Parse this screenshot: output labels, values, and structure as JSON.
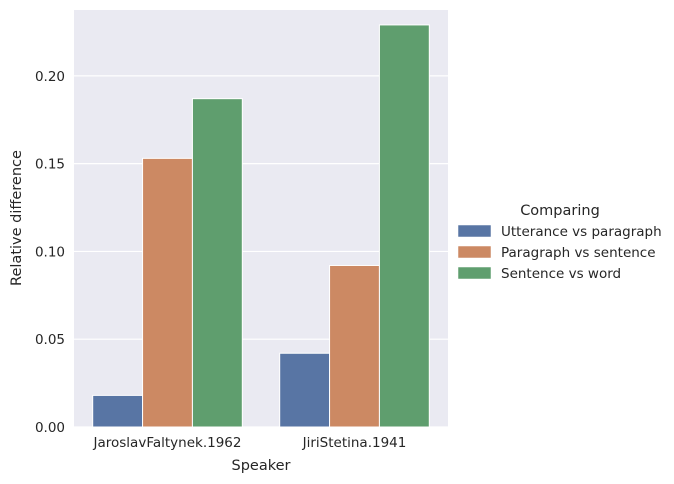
{
  "chart_data": {
    "type": "bar",
    "categories": [
      "JaroslavFaltynek.1962",
      "JiriStetina.1941"
    ],
    "series": [
      {
        "name": "Utterance vs paragraph",
        "values": [
          0.018,
          0.042
        ],
        "color": "#5875a4"
      },
      {
        "name": "Paragraph vs sentence",
        "values": [
          0.153,
          0.092
        ],
        "color": "#cc8963"
      },
      {
        "name": "Sentence vs word",
        "values": [
          0.187,
          0.229
        ],
        "color": "#5f9e6e"
      }
    ],
    "title": "",
    "xlabel": "Speaker",
    "ylabel": "Relative difference",
    "ylim": [
      0,
      0.2375
    ],
    "yticks": [
      "0.00",
      "0.05",
      "0.10",
      "0.15",
      "0.20"
    ],
    "ytick_values": [
      0,
      0.05,
      0.1,
      0.15,
      0.2
    ],
    "legend_title": "Comparing",
    "legend_position": "right",
    "grid": true,
    "background": "#eaeaf2"
  }
}
